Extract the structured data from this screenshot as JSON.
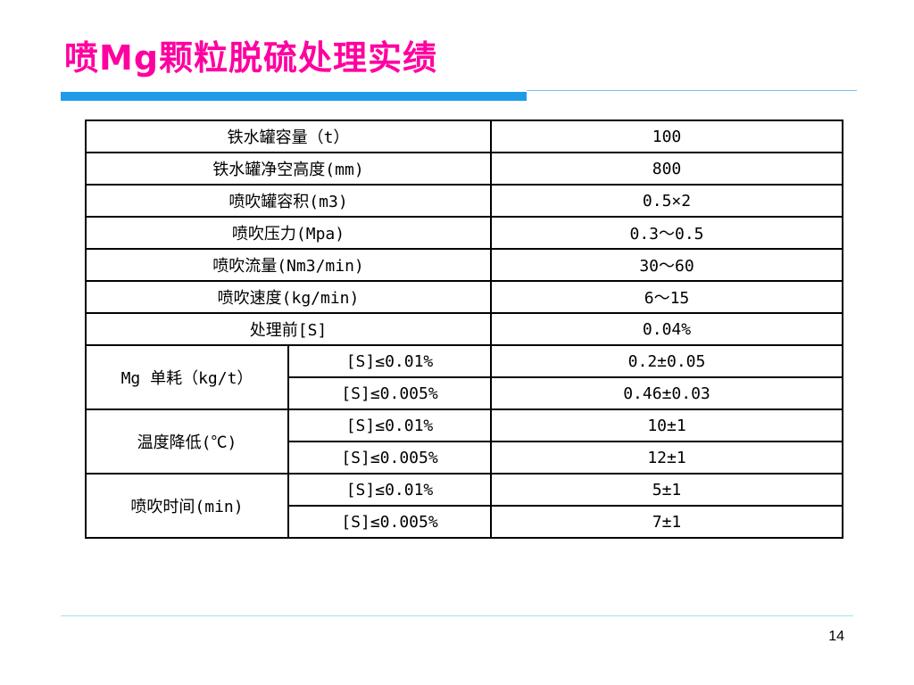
{
  "slide": {
    "title": "喷Mg颗粒脱硫处理实绩",
    "page_number": "14",
    "colors": {
      "title": "#ff00a0",
      "accent_rule": "#1f9be8"
    }
  },
  "table": {
    "simple_rows": [
      {
        "label": "铁水罐容量（t）",
        "value": "100"
      },
      {
        "label": "铁水罐净空高度(mm)",
        "value": "800"
      },
      {
        "label": "喷吹罐容积(m3)",
        "value": "0.5×2"
      },
      {
        "label": "喷吹压力(Mpa)",
        "value": "0.3～0.5"
      },
      {
        "label": "喷吹流量(Nm3/min)",
        "value": "30～60"
      },
      {
        "label": "喷吹速度(kg/min)",
        "value": "6～15"
      },
      {
        "label": "处理前[S]",
        "value": "0.04%"
      }
    ],
    "groups": [
      {
        "label": "Mg 单耗（kg/t）",
        "rows": [
          {
            "condition": "[S]≤0.01%",
            "value": "0.2±0.05"
          },
          {
            "condition": "[S]≤0.005%",
            "value": "0.46±0.03"
          }
        ]
      },
      {
        "label": "温度降低(℃)",
        "rows": [
          {
            "condition": "[S]≤0.01%",
            "value": "10±1"
          },
          {
            "condition": "[S]≤0.005%",
            "value": "12±1"
          }
        ]
      },
      {
        "label": "喷吹时间(min)",
        "rows": [
          {
            "condition": "[S]≤0.01%",
            "value": "5±1"
          },
          {
            "condition": "[S]≤0.005%",
            "value": "7±1"
          }
        ]
      }
    ]
  }
}
